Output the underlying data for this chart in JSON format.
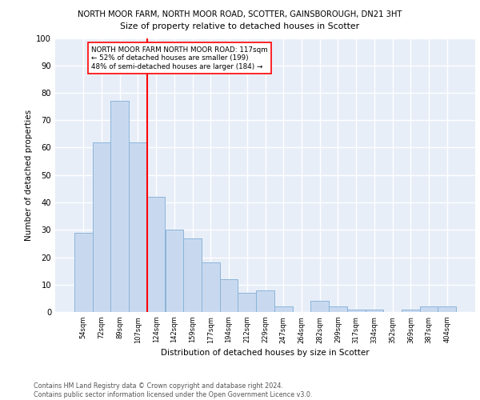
{
  "title1": "NORTH MOOR FARM, NORTH MOOR ROAD, SCOTTER, GAINSBOROUGH, DN21 3HT",
  "title2": "Size of property relative to detached houses in Scotter",
  "xlabel": "Distribution of detached houses by size in Scotter",
  "ylabel": "Number of detached properties",
  "bar_labels": [
    "54sqm",
    "72sqm",
    "89sqm",
    "107sqm",
    "124sqm",
    "142sqm",
    "159sqm",
    "177sqm",
    "194sqm",
    "212sqm",
    "229sqm",
    "247sqm",
    "264sqm",
    "282sqm",
    "299sqm",
    "317sqm",
    "334sqm",
    "352sqm",
    "369sqm",
    "387sqm",
    "404sqm"
  ],
  "bar_values": [
    29,
    62,
    77,
    62,
    42,
    30,
    27,
    18,
    12,
    7,
    8,
    2,
    0,
    4,
    2,
    1,
    1,
    0,
    1,
    2,
    2
  ],
  "bar_color": "#c8d9ef",
  "bar_edgecolor": "#8ab4d9",
  "background_color": "#e8eef8",
  "grid_color": "#ffffff",
  "vline_color": "red",
  "annotation_text": "NORTH MOOR FARM NORTH MOOR ROAD: 117sqm\n← 52% of detached houses are smaller (199)\n48% of semi-detached houses are larger (184) →",
  "annotation_box_edgecolor": "red",
  "footer_text": "Contains HM Land Registry data © Crown copyright and database right 2024.\nContains public sector information licensed under the Open Government Licence v3.0.",
  "ylim": [
    0,
    100
  ],
  "yticks": [
    0,
    10,
    20,
    30,
    40,
    50,
    60,
    70,
    80,
    90,
    100
  ]
}
